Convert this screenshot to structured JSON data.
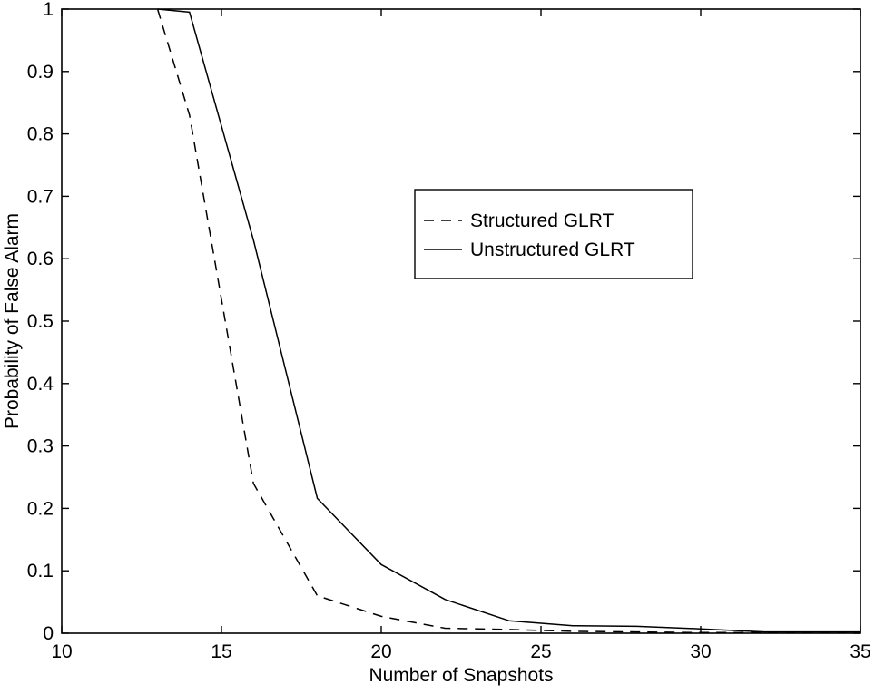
{
  "chart_data": {
    "type": "line",
    "title": "",
    "xlabel": "Number of Snapshots",
    "ylabel": "Probability of False Alarm",
    "xlim": [
      10,
      35
    ],
    "ylim": [
      0,
      1
    ],
    "x_ticks": [
      10,
      15,
      20,
      25,
      30,
      35
    ],
    "y_ticks": [
      0,
      0.1,
      0.2,
      0.3,
      0.4,
      0.5,
      0.6,
      0.7,
      0.8,
      0.9,
      1
    ],
    "x_tick_labels": [
      "10",
      "15",
      "20",
      "25",
      "30",
      "35"
    ],
    "y_tick_labels": [
      "0",
      "0.1",
      "0.2",
      "0.3",
      "0.4",
      "0.5",
      "0.6",
      "0.7",
      "0.8",
      "0.9",
      "1"
    ],
    "grid": false,
    "legend_position": "upper-right",
    "series": [
      {
        "name": "Structured GLRT",
        "style": "dashed",
        "color": "#000000",
        "x": [
          13,
          14,
          16,
          18,
          20,
          22,
          24,
          26,
          28,
          30,
          32,
          34,
          35
        ],
        "y": [
          1.0,
          0.83,
          0.24,
          0.06,
          0.027,
          0.008,
          0.006,
          0.003,
          0.002,
          0.001,
          0.001,
          0.001,
          0.001
        ]
      },
      {
        "name": "Unstructured GLRT",
        "style": "solid",
        "color": "#000000",
        "x": [
          13,
          14,
          16,
          18,
          20,
          22,
          24,
          26,
          28,
          30,
          32,
          34,
          35
        ],
        "y": [
          1.0,
          0.995,
          0.63,
          0.216,
          0.11,
          0.054,
          0.02,
          0.012,
          0.011,
          0.007,
          0.002,
          0.002,
          0.002
        ]
      }
    ]
  }
}
